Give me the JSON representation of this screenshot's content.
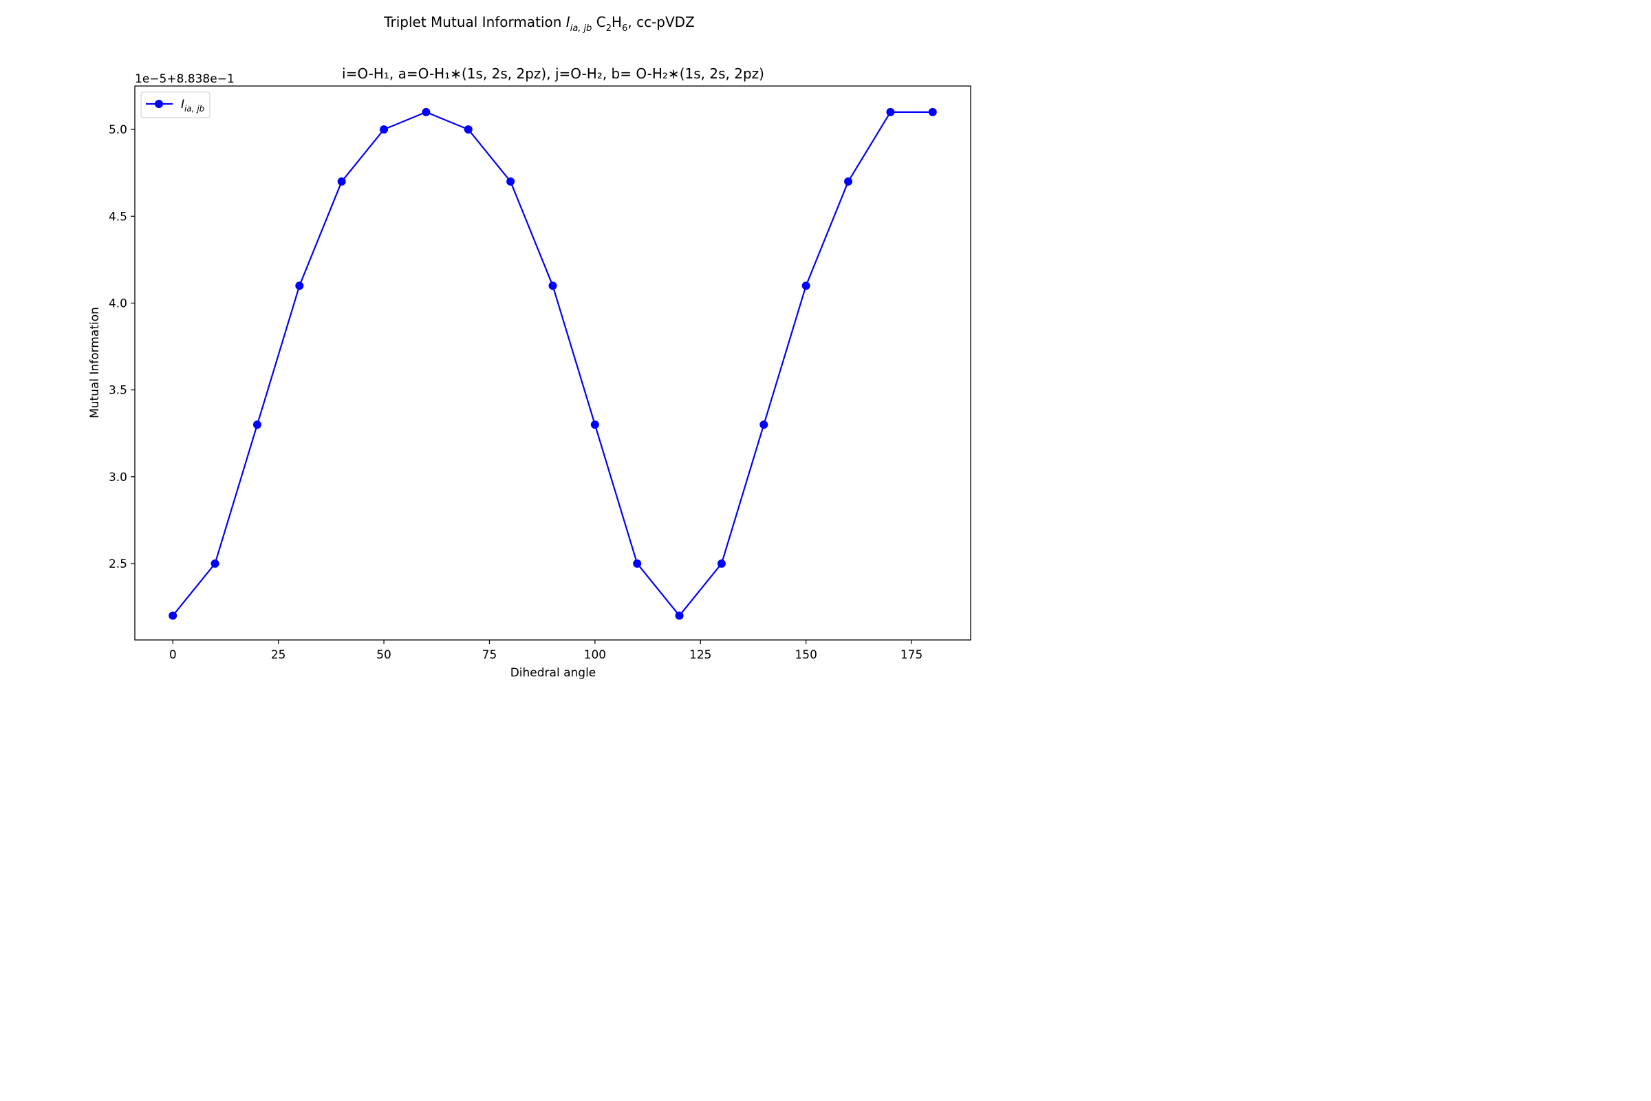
{
  "chart_data": {
    "type": "line",
    "suptitle": {
      "prefix": "Triplet Mutual Information ",
      "symbol": "I",
      "symbol_sub": "ia, jb",
      "suffix": " C",
      "c_sub": "2",
      "h": "H",
      "h_sub": "6",
      "tail": ", cc-pVDZ"
    },
    "title": "i=O-H₁, a=O-H₁∗(1s, 2s, 2pz), j=O-H₂, b= O-H₂∗(1s, 2s, 2pz)",
    "xlabel": "Dihedral angle",
    "ylabel": "Mutual Information",
    "offset_text": "1e−5+8.838e−1",
    "xlim": [
      -9,
      189
    ],
    "ylim": [
      2.06,
      5.25
    ],
    "xticks": [
      0,
      25,
      50,
      75,
      100,
      125,
      150,
      175
    ],
    "yticks": [
      2.5,
      3.0,
      3.5,
      4.0,
      4.5,
      5.0
    ],
    "ytick_labels": [
      "2.5",
      "3.0",
      "3.5",
      "4.0",
      "4.5",
      "5.0"
    ],
    "grid": false,
    "legend_position": "upper-left",
    "series": [
      {
        "name": "I_ia,jb",
        "legend_symbol": "I",
        "legend_sub": "ia, jb",
        "color": "#0000ff",
        "marker": "circle",
        "x": [
          0,
          10,
          20,
          30,
          40,
          50,
          60,
          70,
          80,
          90,
          100,
          110,
          120,
          130,
          140,
          150,
          160,
          170,
          180
        ],
        "y": [
          2.2,
          2.5,
          3.3,
          4.1,
          4.7,
          5.0,
          5.1,
          5.0,
          4.7,
          4.1,
          3.3,
          2.5,
          2.2,
          2.5,
          3.3,
          4.1,
          4.7,
          5.1,
          5.1
        ]
      }
    ]
  }
}
